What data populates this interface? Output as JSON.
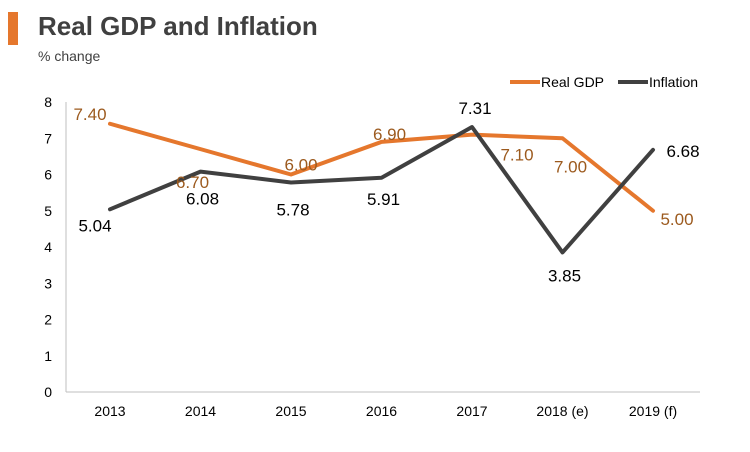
{
  "chart_data": {
    "type": "line",
    "title": "Real GDP and Inflation",
    "subtitle": "% change",
    "categories": [
      "2013",
      "2014",
      "2015",
      "2016",
      "2017",
      "2018 (e)",
      "2019 (f)"
    ],
    "ylim": [
      0,
      8
    ],
    "yticks": [
      "0",
      "1",
      "2",
      "3",
      "4",
      "5",
      "6",
      "7",
      "8"
    ],
    "legend_position": "top-right",
    "series": [
      {
        "name": "Real GDP",
        "color": "#e5772d",
        "label_color": "#9c5a1e",
        "values": [
          7.4,
          6.7,
          6.0,
          6.9,
          7.1,
          7.0,
          5.0
        ],
        "labels": [
          "7.40",
          "6.70",
          "6.00",
          "6.90",
          "7.10",
          "7.00",
          "5.00"
        ]
      },
      {
        "name": "Inflation",
        "color": "#404040",
        "label_color": "#000000",
        "values": [
          5.04,
          6.08,
          5.78,
          5.91,
          7.31,
          3.85,
          6.68
        ],
        "labels": [
          "5.04",
          "6.08",
          "5.78",
          "5.91",
          "7.31",
          "3.85",
          "6.68"
        ]
      }
    ]
  }
}
